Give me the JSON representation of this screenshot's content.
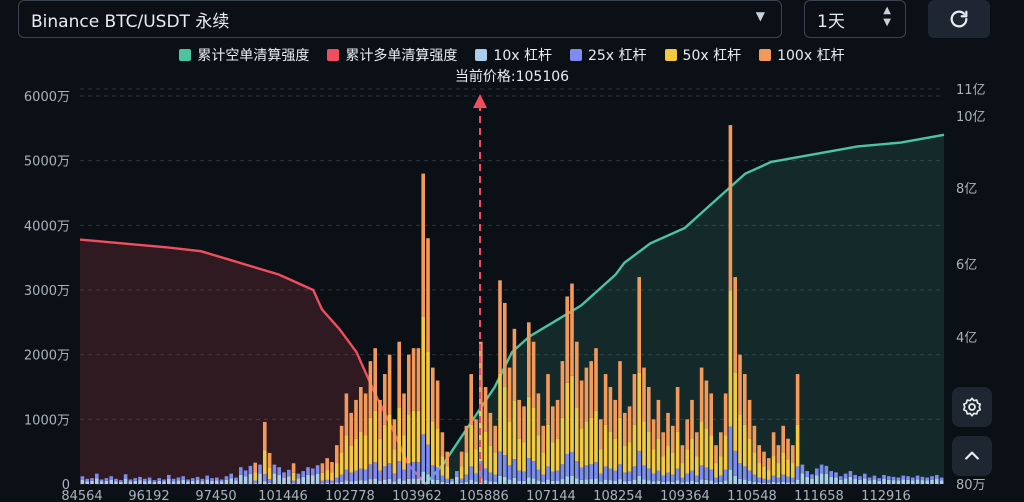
{
  "header": {
    "market_select": "Binance BTC/USDT 永续",
    "timeframe_select": "1天"
  },
  "icons": {
    "dropdown": "chevron-down-icon",
    "stepper": "up-down-arrows-icon",
    "refresh": "refresh-icon",
    "settings": "gear-icon",
    "scroll_top": "chevron-up-icon"
  },
  "colors": {
    "short_cum": "#4cc4a0",
    "long_cum": "#f04e5e",
    "lev10": "#a9cfea",
    "lev25": "#7d8cef",
    "lev50": "#f5c842",
    "lev100": "#f39a5b",
    "price_line": "#f04e5e"
  },
  "current_price_label": "当前价格:105106",
  "chart_data": {
    "type": "bar",
    "legend": [
      {
        "key": "short_cum",
        "label": "累计空单清算强度"
      },
      {
        "key": "long_cum",
        "label": "累计多单清算强度"
      },
      {
        "key": "lev10",
        "label": "10x 杠杆"
      },
      {
        "key": "lev25",
        "label": "25x 杠杆"
      },
      {
        "key": "lev50",
        "label": "50x 杠杆"
      },
      {
        "key": "lev100",
        "label": "100x 杠杆"
      }
    ],
    "x_ticks": [
      "84564",
      "96192",
      "97450",
      "101446",
      "102778",
      "103962",
      "105886",
      "107144",
      "108254",
      "109364",
      "110548",
      "111658",
      "112916"
    ],
    "y_left_ticks": [
      "0",
      "1000万",
      "2000万",
      "3000万",
      "4000万",
      "5000万",
      "6000万"
    ],
    "y_left_range": [
      0,
      60000000
    ],
    "y_right_ticks": [
      "80万",
      "4亿",
      "6亿",
      "8亿",
      "10亿",
      "11亿"
    ],
    "current_price": 105106,
    "bars_total": [
      1200000.0,
      800000.0,
      900000.0,
      1600000.0,
      700000.0,
      900000.0,
      1200000.0,
      800000.0,
      600000.0,
      1500000.0,
      700000.0,
      900000.0,
      1100000.0,
      800000.0,
      1000000.0,
      600000.0,
      900000.0,
      700000.0,
      1400000.0,
      800000.0,
      1000000.0,
      1200000.0,
      700000.0,
      900000.0,
      1100000.0,
      800000.0,
      1300000.0,
      900000.0,
      1000000.0,
      700000.0,
      1200000.0,
      1600000.0,
      1000000.0,
      2600000.0,
      2100000.0,
      2800000.0,
      3300000.0,
      3000000.0,
      9600000.0,
      4800000.0,
      3000000.0,
      2600000.0,
      1800000.0,
      2200000.0,
      3200000.0,
      1600000.0,
      2000000.0,
      2600000.0,
      2400000.0,
      2900000.0,
      3200000.0,
      4000000.0,
      3400000.0,
      6000000.0,
      9000000.0,
      14000000.0,
      11000000.0,
      13000000.0,
      15000000.0,
      14000000.0,
      19000000.0,
      21000000.0,
      13000000.0,
      17000000.0,
      20000000.0,
      10000000.0,
      22000000.0,
      14000000.0,
      20000000.0,
      21000000.0,
      21000000.0,
      48000000.0,
      38000000.0,
      18000000.0,
      16000000.0,
      8000000.0,
      5000000.0,
      800000.0,
      2000000.0,
      5000000.0,
      9000000.0,
      17000000.0,
      10000000.0,
      22000000.0,
      15000000.0,
      11000000.0,
      9000000.0,
      31500000.0,
      28000000.0,
      18000000.0,
      24000000.0,
      13000000.0,
      12000000.0,
      25000000.0,
      22000000.0,
      14000000.0,
      9000000.0,
      17000000.0,
      12000000.0,
      13000000.0,
      19000000.0,
      29000000.0,
      31000000.0,
      22000000.0,
      16000000.0,
      18000000.0,
      19000000.0,
      21000000.0,
      10000000.0,
      17000000.0,
      15000000.0,
      13000000.0,
      19000000.0,
      11000000.0,
      12000000.0,
      17000000.0,
      32000000.0,
      18000000.0,
      15000000.0,
      10000000.0,
      13000000.0,
      8000000.0,
      11000000.0,
      9000000.0,
      15000000.0,
      6000000.0,
      10000000.0,
      13000000.0,
      8000000.0,
      18000000.0,
      16000000.0,
      14000000.0,
      6000000.0,
      8000000.0,
      14000000.0,
      55500000.0,
      32000000.0,
      20000000.0,
      17000000.0,
      13000000.0,
      9000000.0,
      6000000.0,
      5000000.0,
      4000000.0,
      8000000.0,
      6000000.0,
      9000000.0,
      7000000.0,
      6000000.0,
      17000000.0,
      3000000.0,
      2000000.0,
      1500000.0,
      2400000.0,
      3000000.0,
      2800000.0,
      2000000.0,
      1800000.0,
      1200000.0,
      1600000.0,
      2000000.0,
      1400000.0,
      1200000.0,
      1600000.0,
      1000000.0,
      1300000.0,
      900000.0,
      1400000.0,
      1200000.0,
      1100000.0,
      1000000.0,
      1300000.0,
      1200000.0,
      1000000.0,
      1300000.0,
      1100000.0,
      1000000.0,
      1200000.0,
      1400000.0,
      1000000.0
    ],
    "long_cum_path": [
      [
        0,
        0.63
      ],
      [
        0.05,
        0.62
      ],
      [
        0.1,
        0.61
      ],
      [
        0.14,
        0.6
      ],
      [
        0.17,
        0.58
      ],
      [
        0.2,
        0.56
      ],
      [
        0.23,
        0.54
      ],
      [
        0.25,
        0.52
      ],
      [
        0.27,
        0.5
      ],
      [
        0.28,
        0.45
      ],
      [
        0.3,
        0.4
      ],
      [
        0.32,
        0.34
      ],
      [
        0.34,
        0.24
      ],
      [
        0.36,
        0.15
      ],
      [
        0.38,
        0.05
      ],
      [
        0.4,
        0.0
      ]
    ],
    "short_cum_path": [
      [
        0.4,
        0.0
      ],
      [
        0.42,
        0.05
      ],
      [
        0.45,
        0.15
      ],
      [
        0.48,
        0.25
      ],
      [
        0.5,
        0.34
      ],
      [
        0.52,
        0.38
      ],
      [
        0.55,
        0.42
      ],
      [
        0.58,
        0.46
      ],
      [
        0.6,
        0.5
      ],
      [
        0.62,
        0.54
      ],
      [
        0.63,
        0.57
      ],
      [
        0.66,
        0.62
      ],
      [
        0.7,
        0.66
      ],
      [
        0.72,
        0.7
      ],
      [
        0.74,
        0.74
      ],
      [
        0.77,
        0.8
      ],
      [
        0.8,
        0.83
      ],
      [
        0.85,
        0.85
      ],
      [
        0.9,
        0.87
      ],
      [
        0.95,
        0.88
      ],
      [
        1.0,
        0.9
      ]
    ]
  }
}
